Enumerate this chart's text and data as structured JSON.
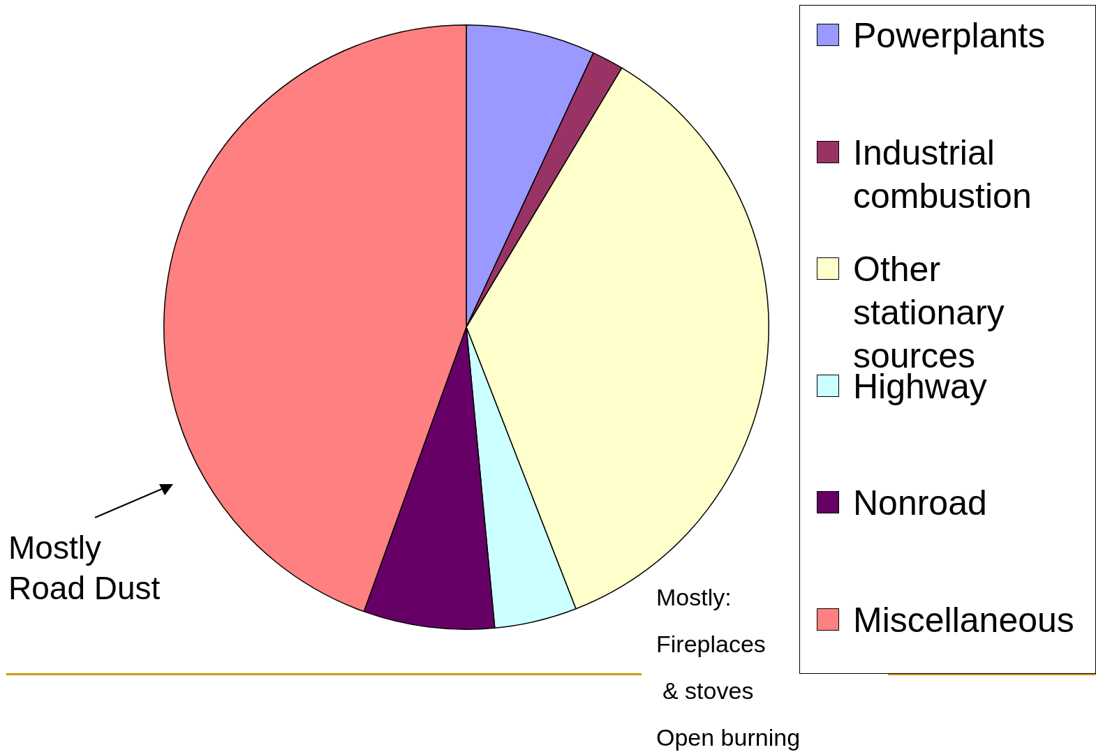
{
  "chart_data": {
    "type": "pie",
    "categories": [
      "Powerplants",
      "Industrial combustion",
      "Other stationary sources",
      "Highway",
      "Nonroad",
      "Miscellaneous"
    ],
    "values": [
      6.9,
      1.7,
      35.5,
      4.4,
      7.0,
      44.5
    ],
    "colors": [
      "#9999ff",
      "#993366",
      "#ffffcc",
      "#ccffff",
      "#660066",
      "#ff8080"
    ],
    "legend": "right",
    "annotations": [
      "Mostly Road Dust",
      "Mostly:",
      "Fireplaces",
      "& stoves",
      "Open burning"
    ]
  }
}
